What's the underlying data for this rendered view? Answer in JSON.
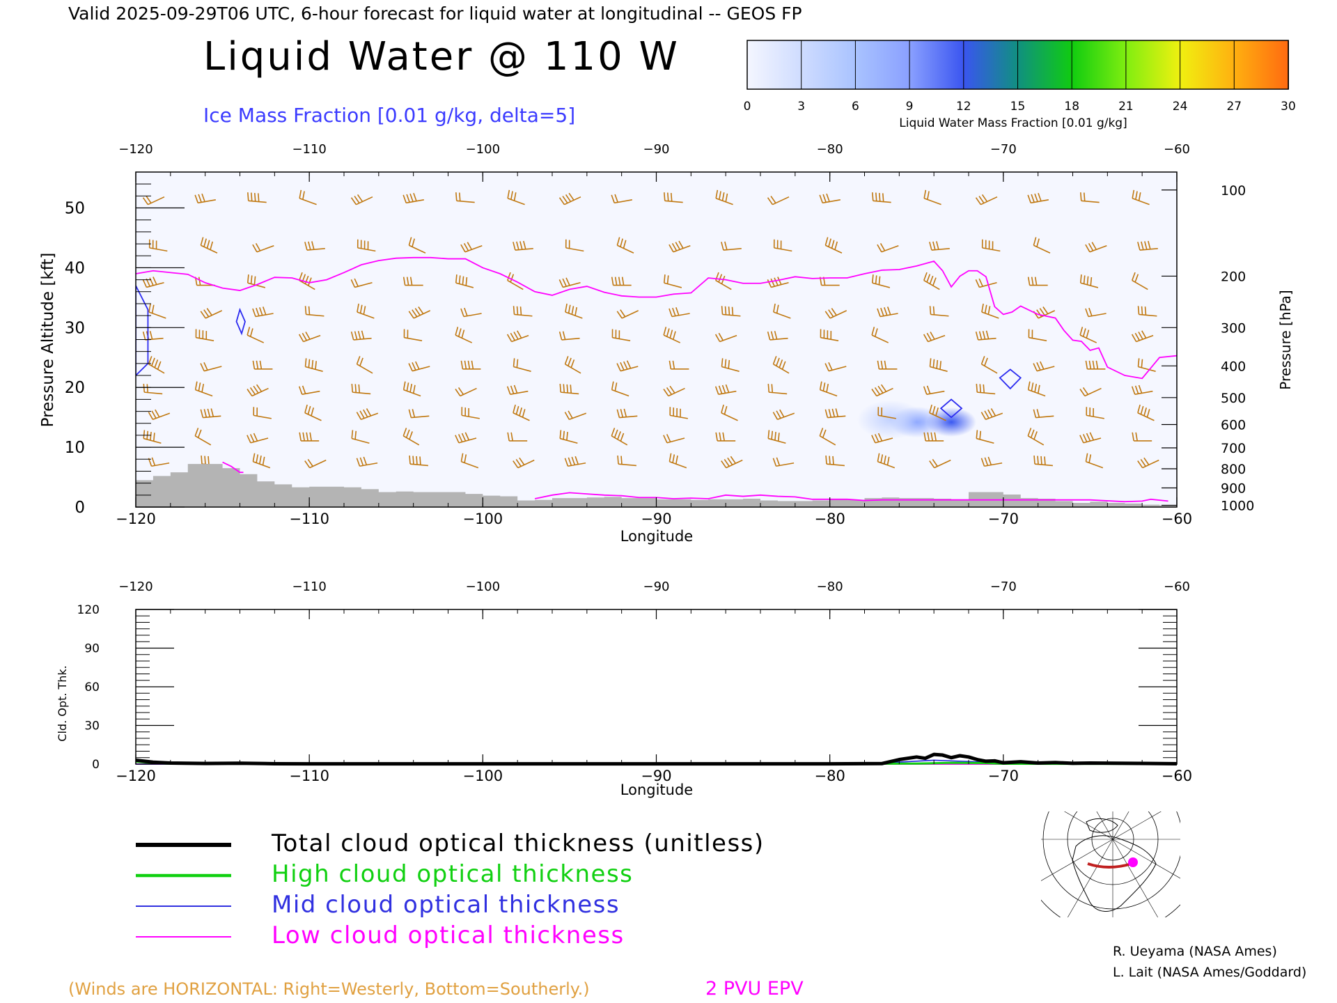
{
  "header": {
    "valid_line": "Valid 2025-09-29T06 UTC, 6-hour forecast for liquid water at longitudinal -- GEOS FP",
    "title": "Liquid Water @ 110 W",
    "subtitle": "Ice Mass Fraction [0.01 g/kg, delta=5]"
  },
  "colorbar": {
    "label": "Liquid Water Mass Fraction [0.01 g/kg]",
    "ticks": [
      "0",
      "3",
      "6",
      "9",
      "12",
      "15",
      "18",
      "21",
      "24",
      "27",
      "30"
    ],
    "colors": [
      "#f4f6ff",
      "#cfdcff",
      "#a9c3ff",
      "#8aa0ff",
      "#3a55f0",
      "#109080",
      "#10cc10",
      "#80ee10",
      "#f0f010",
      "#ffb010",
      "#ff6a10"
    ]
  },
  "chart_data": [
    {
      "type": "line",
      "xlabel": "Longitude",
      "ylabel": "Pressure Altitude [kft]",
      "ylabel_right": "Pressure [hPa]",
      "xlim": [
        -120,
        -60
      ],
      "ylim": [
        0,
        56
      ],
      "x_ticks": [
        "-120",
        "-110",
        "-100",
        "-90",
        "-80",
        "-70",
        "-60"
      ],
      "y_ticks": [
        "0",
        "10",
        "20",
        "30",
        "40",
        "50"
      ],
      "pressure_ticks": [
        {
          "label": "100",
          "kft": 53
        },
        {
          "label": "200",
          "kft": 38.6
        },
        {
          "label": "300",
          "kft": 30
        },
        {
          "label": "400",
          "kft": 23.6
        },
        {
          "label": "500",
          "kft": 18.3
        },
        {
          "label": "600",
          "kft": 13.8
        },
        {
          "label": "700",
          "kft": 9.9
        },
        {
          "label": "800",
          "kft": 6.4
        },
        {
          "label": "900",
          "kft": 3.2
        },
        {
          "label": "1000",
          "kft": 0.3
        }
      ],
      "series": [
        {
          "name": "2 PVU EPV",
          "color": "#ff00ff",
          "x": [
            -120,
            -119,
            -117,
            -116,
            -115,
            -114,
            -113,
            -112,
            -111,
            -110,
            -109,
            -108,
            -107,
            -106,
            -105,
            -104,
            -103,
            -102,
            -101,
            -100,
            -99,
            -98,
            -97,
            -96,
            -95,
            -94,
            -93,
            -92,
            -91,
            -90,
            -89,
            -88,
            -87,
            -86,
            -85,
            -84,
            -83,
            -82,
            -81,
            -80,
            -79,
            -78,
            -77,
            -76,
            -75,
            -74,
            -73.5,
            -73,
            -72.5,
            -72,
            -71.5,
            -71,
            -70.5,
            -70,
            -69.5,
            -69,
            -68,
            -67,
            -66.5,
            -66,
            -65.5,
            -65,
            -64.5,
            -64,
            -63,
            -62,
            -61,
            -60
          ],
          "y": [
            39,
            39.5,
            38.9,
            37.5,
            36.6,
            36.2,
            37.2,
            38.4,
            38.3,
            37.5,
            38,
            39.2,
            40.5,
            41.2,
            41.6,
            41.7,
            41.7,
            41.5,
            41.5,
            40,
            39,
            37.6,
            36,
            35.4,
            36.4,
            36.9,
            35.9,
            35.3,
            35.1,
            35.1,
            35.6,
            35.8,
            38.3,
            38,
            37.4,
            37.4,
            37.9,
            38.5,
            38.2,
            38.3,
            38.3,
            39,
            39.6,
            39.7,
            40.3,
            41.1,
            39.5,
            36.8,
            38.6,
            39.5,
            39.5,
            38.5,
            33.5,
            32.2,
            32.6,
            33.6,
            32.2,
            31.6,
            29.5,
            27.9,
            27.7,
            26.2,
            26.6,
            23.4,
            22,
            21.5,
            25,
            25.3
          ]
        },
        {
          "name": "2 PVU EPV (low)",
          "color": "#ff00ff",
          "x": [
            -97,
            -96,
            -95,
            -94,
            -93,
            -92,
            -91,
            -90,
            -89,
            -88,
            -87,
            -86,
            -85,
            -84,
            -83,
            -82,
            -81,
            -80,
            -79,
            -78,
            -77,
            -70,
            -65,
            -63,
            -62,
            -61.5,
            -60.5
          ],
          "y": [
            1.4,
            2,
            2.4,
            2.2,
            2,
            1.9,
            1.6,
            1.6,
            1.4,
            1.5,
            1.4,
            2,
            1.8,
            2,
            1.8,
            1.7,
            1.3,
            1.3,
            1.3,
            1.1,
            1.2,
            1.2,
            1.2,
            0.9,
            1,
            1.3,
            1
          ]
        },
        {
          "name": "2 PVU EPV (surface)",
          "color": "#ff00ff",
          "x": [
            -115,
            -114.5,
            -114,
            -113.8
          ],
          "y": [
            7.5,
            6.8,
            5.8,
            5.8
          ]
        }
      ],
      "terrain": {
        "x": [
          -120,
          -119,
          -118,
          -117,
          -116,
          -115,
          -114,
          -113,
          -112,
          -111,
          -110,
          -109,
          -108,
          -107,
          -106,
          -105,
          -104,
          -103,
          -102,
          -101,
          -100,
          -99,
          -98,
          -97,
          -96,
          -95,
          -94,
          -93,
          -92,
          -91,
          -90,
          -89,
          -88,
          -87,
          -86,
          -85,
          -84,
          -83,
          -82,
          -81,
          -80,
          -79,
          -78,
          -77,
          -76,
          -75,
          -74,
          -73,
          -72,
          -71,
          -70,
          -69,
          -68,
          -67,
          -66,
          -65,
          -64,
          -63,
          -62,
          -61,
          -60
        ],
        "kft": [
          4.5,
          5.2,
          5.8,
          7.2,
          7.2,
          6.5,
          5.5,
          4.3,
          3.8,
          3.3,
          3.4,
          3.4,
          3.3,
          3,
          2.5,
          2.6,
          2.5,
          2.5,
          2.5,
          2.2,
          1.9,
          1.8,
          1.1,
          1.2,
          1.5,
          1.5,
          1.6,
          1.7,
          1.5,
          1.5,
          1.3,
          1.3,
          1.2,
          1.3,
          1.3,
          1.4,
          1.1,
          1.0,
          1.0,
          1.1,
          1.3,
          1.2,
          1.5,
          1.6,
          1.5,
          1.5,
          1.4,
          1.3,
          2.5,
          2.5,
          2.1,
          1.5,
          1.4,
          1.0,
          0.7,
          0.9,
          0.7,
          0.6,
          0.4,
          0.3,
          0.2
        ]
      },
      "liquid_water_patches": [
        {
          "lon": -73,
          "kft": 14.2,
          "value": 12
        },
        {
          "lon": -75,
          "kft": 14.2,
          "value": 5
        },
        {
          "lon": -76.5,
          "kft": 14.6,
          "value": 2
        }
      ],
      "ice_contours": [
        {
          "lon": [
            -120,
            -119.3,
            -119.3,
            -120
          ],
          "kft": [
            37,
            33,
            24,
            22
          ]
        },
        {
          "lon": [
            -114,
            -113.7,
            -113.9,
            -114.2
          ],
          "kft": [
            33,
            31,
            29,
            31
          ]
        },
        {
          "lon": [
            -73.6,
            -73,
            -72.4,
            -73
          ],
          "kft": [
            16.5,
            18,
            16.5,
            15
          ]
        },
        {
          "lon": [
            -70.2,
            -69.6,
            -69,
            -69.6
          ],
          "kft": [
            21.6,
            23,
            21.6,
            19.8
          ]
        }
      ],
      "wind_barbs": {
        "color": "#c07810",
        "lon": [
          -119,
          -116,
          -113,
          -110,
          -107,
          -104,
          -101,
          -98,
          -95,
          -92,
          -89,
          -86,
          -83,
          -80,
          -77,
          -74,
          -71,
          -68,
          -65,
          -62
        ],
        "kft": [
          52,
          44,
          38,
          33,
          29,
          24,
          20,
          16,
          12,
          8
        ],
        "note_text": "(Winds are HORIZONTAL: Right=Westerly, Bottom=Southerly.)"
      }
    },
    {
      "type": "line",
      "xlabel": "Longitude",
      "ylabel": "Cld. Opt. Thk.",
      "xlim": [
        -120,
        -60
      ],
      "ylim": [
        0,
        120
      ],
      "x_ticks": [
        "-120",
        "-110",
        "-100",
        "-90",
        "-80",
        "-70",
        "-60"
      ],
      "y_ticks": [
        "0",
        "30",
        "60",
        "90",
        "120"
      ],
      "series": [
        {
          "name": "Total cloud optical thickness (unitless)",
          "color": "#000000",
          "x": [
            -120,
            -119,
            -118,
            -116,
            -114,
            -112,
            -110,
            -100,
            -90,
            -80,
            -77,
            -76,
            -75,
            -74.5,
            -74,
            -73.5,
            -73,
            -72.5,
            -72,
            -71.5,
            -71,
            -70.5,
            -70,
            -69,
            -68,
            -67,
            -66,
            -65,
            -60
          ],
          "y": [
            3,
            1.5,
            0.8,
            0.5,
            0.7,
            0.3,
            0.2,
            0.2,
            0.2,
            0.2,
            0.4,
            3.5,
            5.5,
            4.5,
            7.5,
            7,
            5,
            6.5,
            5.5,
            3.5,
            2.2,
            2.5,
            1,
            1.8,
            0.8,
            1.2,
            0.6,
            0.8,
            0.3
          ]
        },
        {
          "name": "High cloud optical thickness",
          "color": "#10d010",
          "x": [
            -120,
            -119,
            -118,
            -114,
            -110,
            -100,
            -90,
            -80,
            -75,
            -73,
            -71,
            -70,
            -65,
            -60
          ],
          "y": [
            2,
            0.8,
            0.3,
            0.4,
            0.2,
            0.2,
            0.2,
            0.2,
            0.4,
            1,
            0.8,
            0.3,
            0.2,
            0.2
          ]
        },
        {
          "name": "Mid cloud optical thickness",
          "color": "#2020e0",
          "x": [
            -120,
            -110,
            -100,
            -90,
            -80,
            -76,
            -74,
            -73,
            -72,
            -70,
            -69,
            -67,
            -65,
            -60
          ],
          "y": [
            0,
            0,
            0,
            0,
            0,
            1.5,
            3,
            2.5,
            2,
            0.8,
            0.5,
            0.5,
            0.2,
            0
          ]
        },
        {
          "name": "Low cloud optical thickness",
          "color": "#ff00ff",
          "x": [
            -120,
            -110,
            -100,
            -90,
            -80,
            -70,
            -68,
            -66,
            -64,
            -60
          ],
          "y": [
            0,
            0,
            0,
            0,
            0,
            0,
            0.5,
            0.6,
            0.2,
            0
          ]
        }
      ]
    }
  ],
  "legend": [
    {
      "label": "Total cloud optical thickness (unitless)",
      "color": "#000000"
    },
    {
      "label": "High cloud optical thickness",
      "color": "#10d010"
    },
    {
      "label": "Mid cloud optical thickness",
      "color": "#3030e0"
    },
    {
      "label": "Low cloud optical thickness",
      "color": "#ff00ff"
    }
  ],
  "footer": {
    "epv_label": "2 PVU EPV",
    "credit_1": "R. Ueyama (NASA Ames)",
    "credit_2": "L. Lait (NASA Ames/Goddard)"
  },
  "map_inset": {
    "icon": "polar-map-icon",
    "track_color": "#c02020",
    "marker_color": "#ff00ff"
  }
}
